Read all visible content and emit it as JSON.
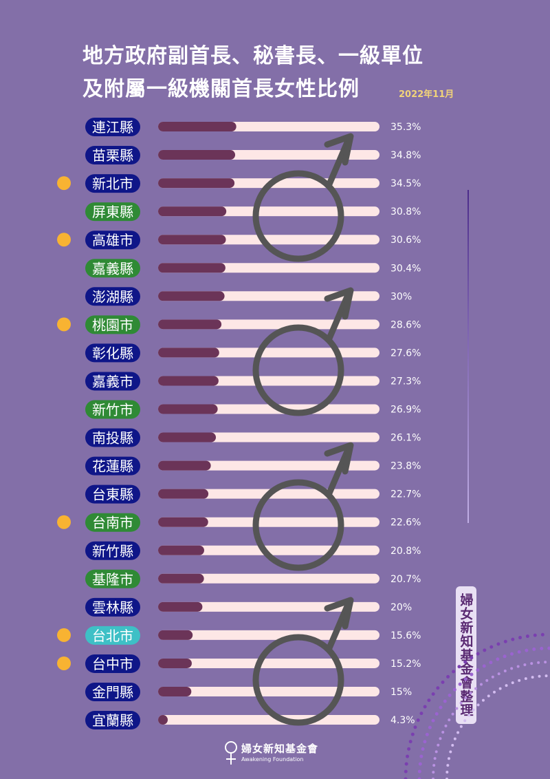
{
  "title_lines": [
    "地方政府副首長、秘書長、一級單位",
    "及附屬一級機關首長女性比例"
  ],
  "date": "2022年11月",
  "credit": "婦女新知基金會整理",
  "footer": {
    "org": "婦女新知基金會",
    "org_en": "Awakening Foundation"
  },
  "colors": {
    "background": "#836fa8",
    "bar_track": "#fde7e6",
    "bar_fill": "#6b3458",
    "label_navy": "#0f1688",
    "label_green": "#2f8a35",
    "label_teal": "#3ec0c6",
    "marker": "#f8b332",
    "male_symbol": "#555555"
  },
  "chart_data": {
    "type": "bar",
    "orientation": "horizontal",
    "xlim": [
      0,
      100
    ],
    "categories": [
      "連江縣",
      "苗栗縣",
      "新北市",
      "屏東縣",
      "高雄市",
      "嘉義縣",
      "澎湖縣",
      "桃園市",
      "彰化縣",
      "嘉義市",
      "新竹市",
      "南投縣",
      "花蓮縣",
      "台東縣",
      "台南市",
      "新竹縣",
      "基隆市",
      "雲林縣",
      "台北市",
      "台中市",
      "金門縣",
      "宜蘭縣"
    ],
    "values": [
      35.3,
      34.8,
      34.5,
      30.8,
      30.6,
      30.4,
      30,
      28.6,
      27.6,
      27.3,
      26.9,
      26.1,
      23.8,
      22.7,
      22.6,
      20.8,
      20.7,
      20,
      15.6,
      15.2,
      15,
      4.3
    ],
    "value_labels": [
      "35.3%",
      "34.8%",
      "34.5%",
      "30.8%",
      "30.6%",
      "30.4%",
      "30%",
      "28.6%",
      "27.6%",
      "27.3%",
      "26.9%",
      "26.1%",
      "23.8%",
      "22.7%",
      "22.6%",
      "20.8%",
      "20.7%",
      "20%",
      "15.6%",
      "15.2%",
      "15%",
      "4.3%"
    ],
    "label_colors": [
      "navy",
      "navy",
      "navy",
      "green",
      "navy",
      "green",
      "navy",
      "green",
      "navy",
      "navy",
      "green",
      "navy",
      "navy",
      "navy",
      "green",
      "navy",
      "green",
      "navy",
      "teal",
      "navy",
      "navy",
      "navy"
    ],
    "markers": [
      false,
      false,
      true,
      false,
      true,
      false,
      false,
      true,
      false,
      false,
      false,
      false,
      false,
      false,
      true,
      false,
      false,
      false,
      true,
      true,
      false,
      false
    ]
  }
}
